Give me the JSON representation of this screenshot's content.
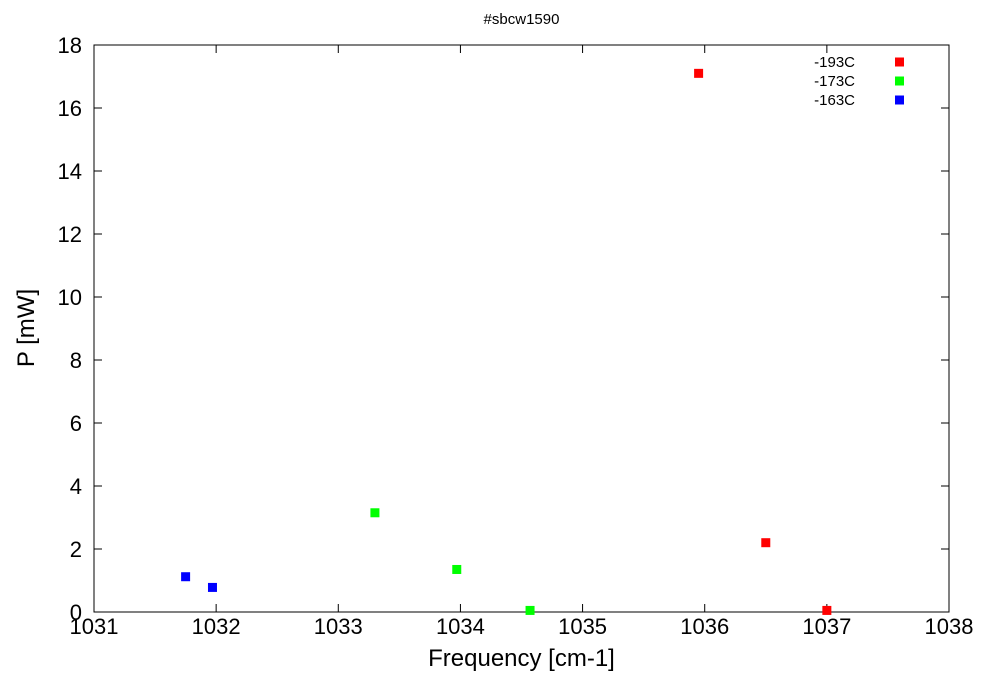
{
  "chart_data": {
    "type": "scatter",
    "title": "#sbcw1590",
    "xlabel": "Frequency [cm-1]",
    "ylabel": "P [mW]",
    "xlim": [
      1031,
      1038
    ],
    "ylim": [
      0,
      18
    ],
    "xticks": [
      1031,
      1032,
      1033,
      1034,
      1035,
      1036,
      1037,
      1038
    ],
    "yticks": [
      0,
      2,
      4,
      6,
      8,
      10,
      12,
      14,
      16,
      18
    ],
    "grid": false,
    "legend_position": "top-right",
    "series": [
      {
        "name": "-193C",
        "color": "#ff0000",
        "points": [
          [
            1035.95,
            17.1
          ],
          [
            1036.5,
            2.2
          ],
          [
            1037.0,
            0.05
          ]
        ]
      },
      {
        "name": "-173C",
        "color": "#00ff00",
        "points": [
          [
            1033.3,
            3.15
          ],
          [
            1033.97,
            1.35
          ],
          [
            1034.57,
            0.05
          ]
        ]
      },
      {
        "name": "-163C",
        "color": "#0000ff",
        "points": [
          [
            1031.75,
            1.12
          ],
          [
            1031.97,
            0.78
          ]
        ]
      }
    ]
  }
}
